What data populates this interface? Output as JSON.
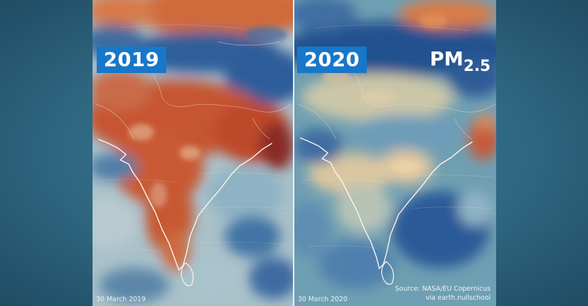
{
  "panels": [
    {
      "year": "2019",
      "date": "30 March 2019"
    },
    {
      "year": "2020",
      "date": "30 March 2020"
    }
  ],
  "pollutant": {
    "base": "PM",
    "subscript": "2.5"
  },
  "source": {
    "line1": "Source: NASA/EU Copernicus",
    "line2": "via earth.nullschool"
  },
  "colors": {
    "background": "#2f6781",
    "year_badge": "#1877c9",
    "high_pollution": "#c9552e",
    "low_pollution": "#24518f",
    "moderate": "#d9c9a2",
    "coastline": "#fff4ea"
  }
}
